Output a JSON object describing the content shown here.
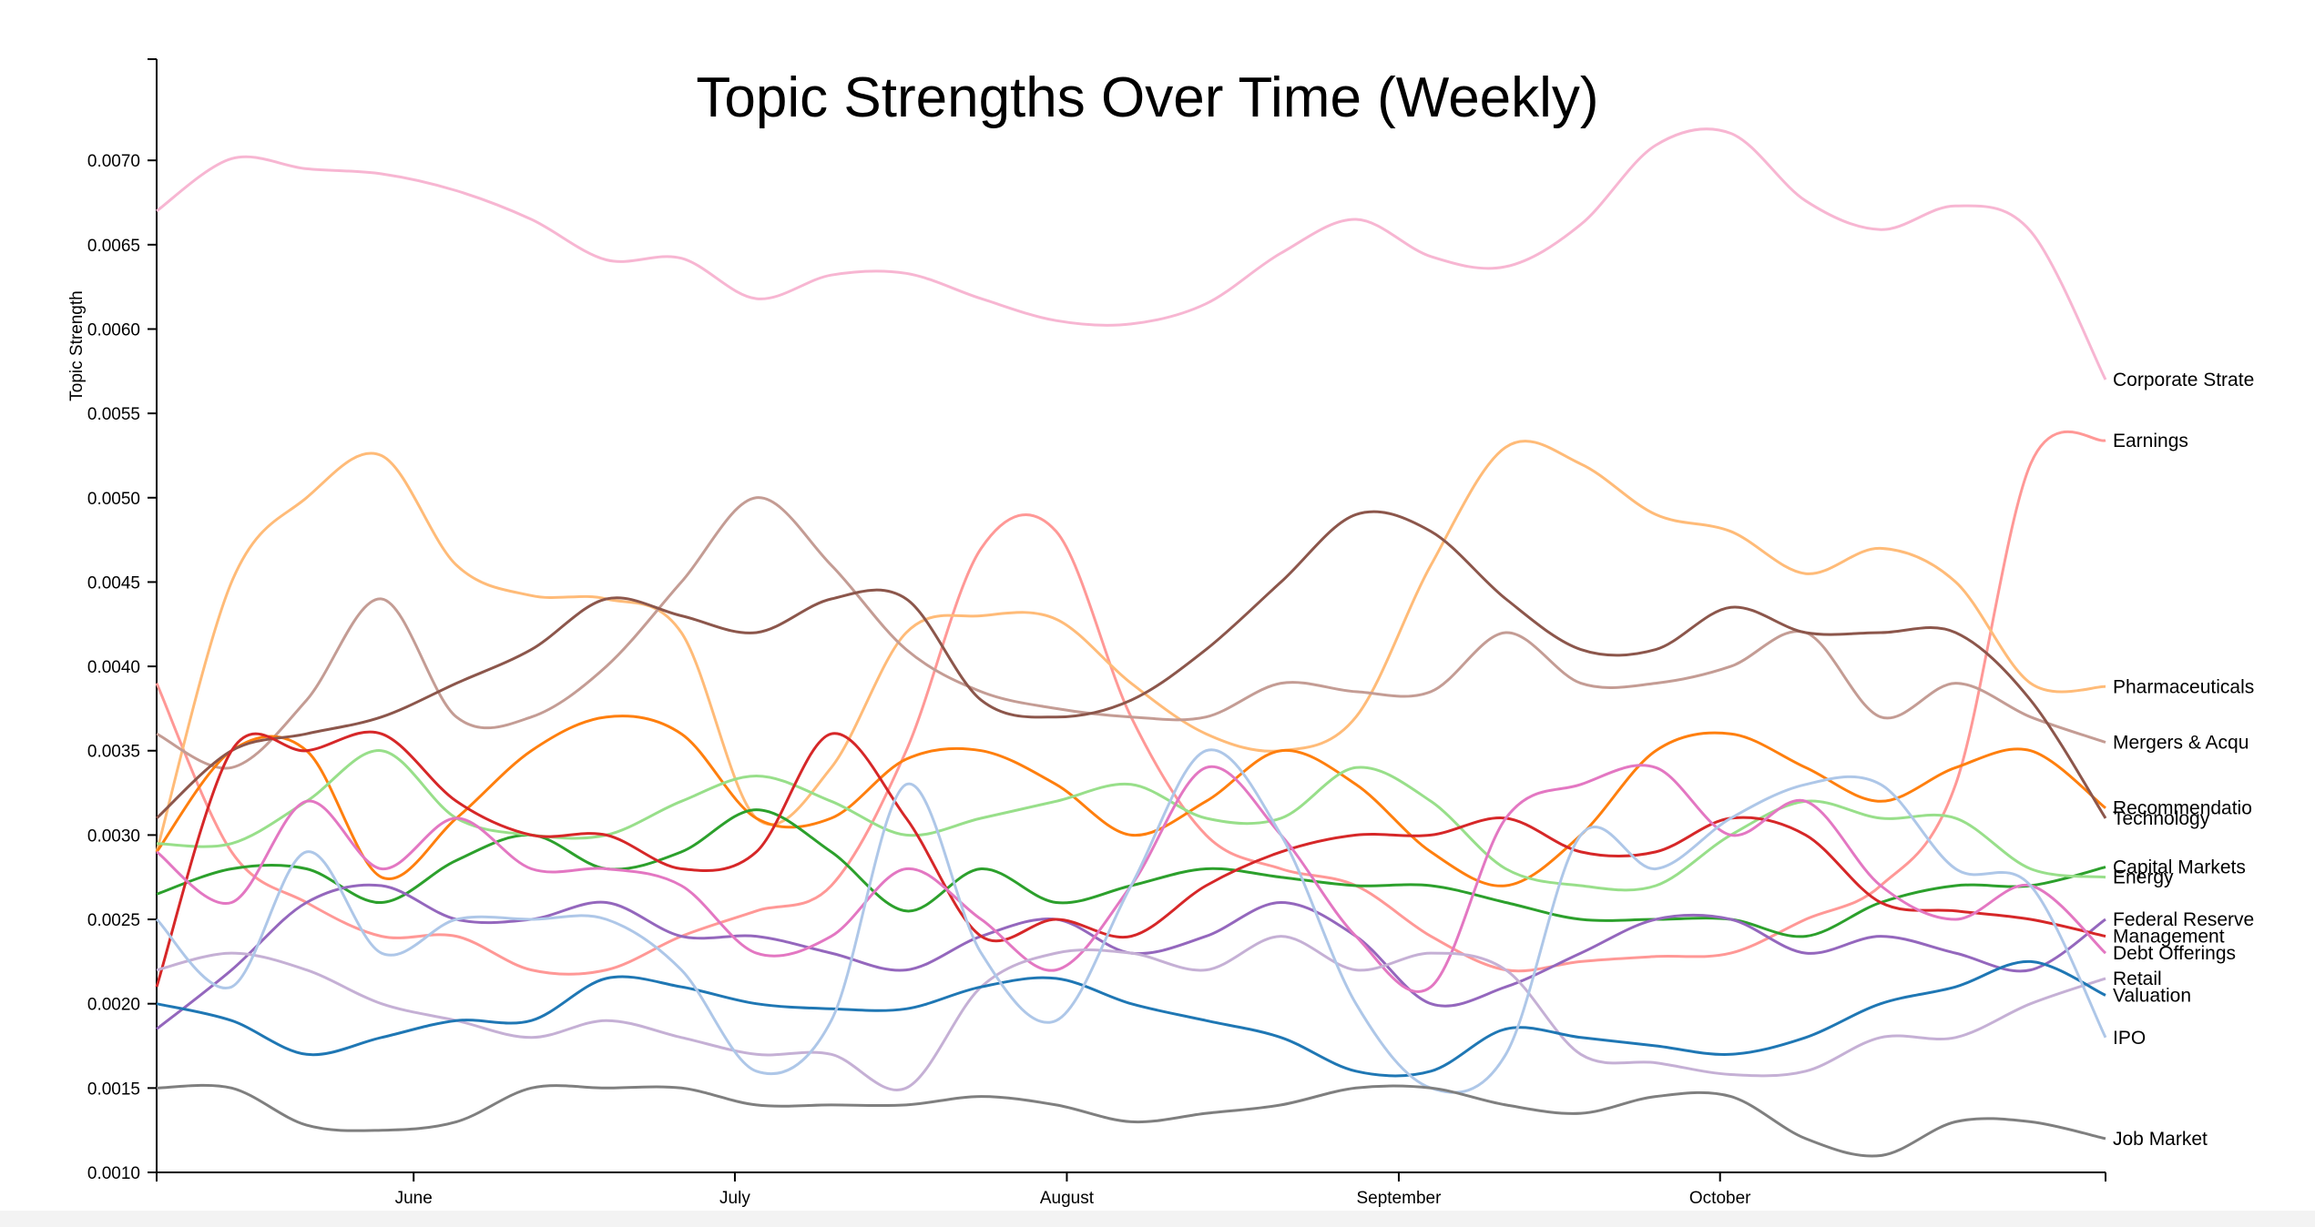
{
  "chart_data": {
    "type": "line",
    "title": "Topic Strengths Over Time (Weekly)",
    "xlabel": "",
    "ylabel": "Topic Strength",
    "x": [
      "2017-05-08",
      "2017-05-15",
      "2017-05-22",
      "2017-05-29",
      "2017-06-05",
      "2017-06-12",
      "2017-06-19",
      "2017-06-26",
      "2017-07-03",
      "2017-07-10",
      "2017-07-17",
      "2017-07-24",
      "2017-07-31",
      "2017-08-07",
      "2017-08-14",
      "2017-08-21",
      "2017-08-28",
      "2017-09-04",
      "2017-09-11",
      "2017-09-18",
      "2017-09-25",
      "2017-10-02",
      "2017-10-09",
      "2017-10-16",
      "2017-10-23",
      "2017-10-30",
      "2017-11-06"
    ],
    "x_tick_labels": [
      {
        "date": "2017-06-01",
        "label": "June"
      },
      {
        "date": "2017-07-01",
        "label": "July"
      },
      {
        "date": "2017-08-01",
        "label": "August"
      },
      {
        "date": "2017-09-01",
        "label": "September"
      },
      {
        "date": "2017-10-01",
        "label": "October"
      }
    ],
    "ylim": [
      0.001,
      0.0076
    ],
    "y_ticks": [
      0.001,
      0.0015,
      0.002,
      0.0025,
      0.003,
      0.0035,
      0.004,
      0.0045,
      0.005,
      0.0055,
      0.006,
      0.0065,
      0.007
    ],
    "y_tick_labels": [
      "0.0010",
      "0.0015",
      "0.0020",
      "0.0025",
      "0.0030",
      "0.0035",
      "0.0040",
      "0.0045",
      "0.0050",
      "0.0055",
      "0.0060",
      "0.0065",
      "0.0070"
    ],
    "grid": false,
    "legend": "end-of-line labels",
    "series": [
      {
        "name": "Corporate Strategy",
        "label_text": "Corporate Strate",
        "color": "#f7b6d2",
        "values": [
          0.0067,
          0.00701,
          0.00695,
          0.00692,
          0.00682,
          0.00665,
          0.00641,
          0.00642,
          0.00618,
          0.00632,
          0.00633,
          0.00618,
          0.00605,
          0.00603,
          0.00615,
          0.00645,
          0.00665,
          0.00643,
          0.00637,
          0.00662,
          0.00709,
          0.00716,
          0.00676,
          0.00659,
          0.00673,
          0.00658,
          0.0057
        ]
      },
      {
        "name": "Earnings",
        "label_text": "Earnings",
        "color": "#ff9896",
        "values": [
          0.0039,
          0.0029,
          0.0026,
          0.0024,
          0.0024,
          0.0022,
          0.0022,
          0.0024,
          0.00255,
          0.0027,
          0.0035,
          0.0047,
          0.0048,
          0.0037,
          0.003,
          0.0028,
          0.0027,
          0.0024,
          0.0022,
          0.00225,
          0.00228,
          0.0023,
          0.0025,
          0.0027,
          0.0033,
          0.0052,
          0.00534
        ]
      },
      {
        "name": "Pharmaceuticals",
        "label_text": "Pharmaceuticals",
        "color": "#ffbb78",
        "values": [
          0.0029,
          0.0045,
          0.005,
          0.00525,
          0.0046,
          0.00442,
          0.0044,
          0.0042,
          0.0031,
          0.0034,
          0.0042,
          0.0043,
          0.00428,
          0.0039,
          0.0036,
          0.0035,
          0.0037,
          0.0046,
          0.0053,
          0.0052,
          0.0049,
          0.0048,
          0.00455,
          0.0047,
          0.0045,
          0.0039,
          0.00388
        ]
      },
      {
        "name": "Mergers & Acquisitions",
        "label_text": "Mergers & Acqu",
        "color": "#c49c94",
        "values": [
          0.0036,
          0.0034,
          0.0038,
          0.0044,
          0.0037,
          0.0037,
          0.004,
          0.0045,
          0.005,
          0.0046,
          0.0041,
          0.00385,
          0.00375,
          0.0037,
          0.0037,
          0.0039,
          0.00385,
          0.00385,
          0.0042,
          0.0039,
          0.0039,
          0.004,
          0.0042,
          0.0037,
          0.0039,
          0.0037,
          0.00355
        ]
      },
      {
        "name": "Recommendations",
        "label_text": "Recommendatio",
        "color": "#ff7f0e",
        "values": [
          0.0029,
          0.0035,
          0.0035,
          0.00275,
          0.0031,
          0.0035,
          0.0037,
          0.0036,
          0.0031,
          0.0031,
          0.00345,
          0.0035,
          0.0033,
          0.003,
          0.0032,
          0.0035,
          0.0033,
          0.0029,
          0.0027,
          0.003,
          0.0035,
          0.0036,
          0.0034,
          0.0032,
          0.0034,
          0.0035,
          0.00316
        ]
      },
      {
        "name": "Technology",
        "label_text": "Technology",
        "color": "#8c564b",
        "values": [
          0.0031,
          0.0035,
          0.0036,
          0.0037,
          0.0039,
          0.0041,
          0.0044,
          0.0043,
          0.0042,
          0.0044,
          0.0044,
          0.0038,
          0.0037,
          0.0038,
          0.0041,
          0.0045,
          0.0049,
          0.0048,
          0.0044,
          0.0041,
          0.0041,
          0.00435,
          0.0042,
          0.0042,
          0.0042,
          0.0038,
          0.0031
        ]
      },
      {
        "name": "Capital Markets",
        "label_text": "Capital Markets",
        "color": "#2ca02c",
        "values": [
          0.00265,
          0.0028,
          0.0028,
          0.0026,
          0.00285,
          0.003,
          0.0028,
          0.0029,
          0.00315,
          0.0029,
          0.00255,
          0.0028,
          0.0026,
          0.0027,
          0.0028,
          0.00275,
          0.0027,
          0.0027,
          0.0026,
          0.0025,
          0.0025,
          0.0025,
          0.0024,
          0.0026,
          0.0027,
          0.0027,
          0.00281
        ]
      },
      {
        "name": "Energy",
        "label_text": "Energy",
        "color": "#98df8a",
        "values": [
          0.00295,
          0.00295,
          0.0032,
          0.0035,
          0.0031,
          0.003,
          0.003,
          0.0032,
          0.00335,
          0.0032,
          0.003,
          0.0031,
          0.0032,
          0.0033,
          0.0031,
          0.0031,
          0.0034,
          0.0032,
          0.0028,
          0.0027,
          0.0027,
          0.003,
          0.0032,
          0.0031,
          0.0031,
          0.0028,
          0.00275
        ]
      },
      {
        "name": "Federal Reserve",
        "label_text": "Federal Reserve",
        "color": "#9467bd",
        "values": [
          0.00185,
          0.0022,
          0.0026,
          0.0027,
          0.0025,
          0.0025,
          0.0026,
          0.0024,
          0.0024,
          0.0023,
          0.0022,
          0.0024,
          0.0025,
          0.0023,
          0.0024,
          0.0026,
          0.0024,
          0.002,
          0.0021,
          0.0023,
          0.0025,
          0.0025,
          0.0023,
          0.0024,
          0.0023,
          0.0022,
          0.0025
        ]
      },
      {
        "name": "Management",
        "label_text": "Management",
        "color": "#d62728",
        "values": [
          0.0021,
          0.0035,
          0.0035,
          0.0036,
          0.0032,
          0.003,
          0.003,
          0.0028,
          0.0029,
          0.0036,
          0.0031,
          0.0024,
          0.0025,
          0.0024,
          0.0027,
          0.0029,
          0.003,
          0.003,
          0.0031,
          0.0029,
          0.0029,
          0.0031,
          0.003,
          0.0026,
          0.00255,
          0.0025,
          0.0024
        ]
      },
      {
        "name": "Debt Offerings",
        "label_text": "Debt Offerings",
        "color": "#e377c2",
        "values": [
          0.0029,
          0.0026,
          0.0032,
          0.0028,
          0.0031,
          0.0028,
          0.0028,
          0.0027,
          0.0023,
          0.0024,
          0.0028,
          0.0025,
          0.0022,
          0.0027,
          0.0034,
          0.003,
          0.0024,
          0.0021,
          0.0031,
          0.0033,
          0.0034,
          0.003,
          0.0032,
          0.0027,
          0.0025,
          0.0027,
          0.0023
        ]
      },
      {
        "name": "Retail",
        "label_text": "Retail",
        "color": "#c5b0d5",
        "values": [
          0.0022,
          0.0023,
          0.0022,
          0.002,
          0.0019,
          0.0018,
          0.0019,
          0.0018,
          0.0017,
          0.0017,
          0.0015,
          0.0021,
          0.0023,
          0.0023,
          0.0022,
          0.0024,
          0.0022,
          0.0023,
          0.0022,
          0.0017,
          0.00165,
          0.00158,
          0.0016,
          0.0018,
          0.0018,
          0.002,
          0.00215
        ]
      },
      {
        "name": "Valuation",
        "label_text": "Valuation",
        "color": "#1f77b4",
        "values": [
          0.002,
          0.0019,
          0.0017,
          0.0018,
          0.0019,
          0.0019,
          0.00215,
          0.0021,
          0.002,
          0.00197,
          0.00197,
          0.0021,
          0.00215,
          0.002,
          0.0019,
          0.0018,
          0.0016,
          0.0016,
          0.00185,
          0.0018,
          0.00175,
          0.0017,
          0.0018,
          0.002,
          0.0021,
          0.00225,
          0.00205
        ]
      },
      {
        "name": "IPO",
        "label_text": "IPO",
        "color": "#aec7e8",
        "values": [
          0.0025,
          0.0021,
          0.0029,
          0.0023,
          0.0025,
          0.0025,
          0.0025,
          0.0022,
          0.0016,
          0.0019,
          0.0033,
          0.0023,
          0.0019,
          0.0027,
          0.0035,
          0.003,
          0.002,
          0.0015,
          0.0017,
          0.003,
          0.0028,
          0.0031,
          0.0033,
          0.0033,
          0.0028,
          0.0027,
          0.0018
        ]
      },
      {
        "name": "Job Market",
        "label_text": "Job Market",
        "color": "#7f7f7f",
        "values": [
          0.0015,
          0.0015,
          0.00128,
          0.00125,
          0.0013,
          0.0015,
          0.0015,
          0.0015,
          0.0014,
          0.0014,
          0.0014,
          0.00145,
          0.0014,
          0.0013,
          0.00135,
          0.0014,
          0.0015,
          0.0015,
          0.0014,
          0.00135,
          0.00145,
          0.00145,
          0.0012,
          0.0011,
          0.0013,
          0.0013,
          0.0012
        ]
      }
    ]
  }
}
